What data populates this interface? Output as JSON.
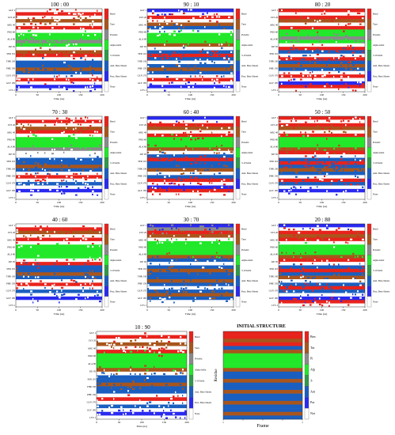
{
  "figure": {
    "background": "#ffffff"
  },
  "legend_colors": {
    "Bend": "#e8231c",
    "Turn": "#a8551c",
    "Pi-helix": "#8a8a8a",
    "Alpha-helix": "#22e82a",
    "3-10 helix": "#2f9a4a",
    "Anti. Beta-Sheets": "#1a5fc0",
    "Para. Beta-Sheets": "#2a2af0",
    "None": "#ffffff"
  },
  "chart_data": [
    {
      "type": "heatmap",
      "title": "100 : 00",
      "xlabel": "Time (ns)",
      "xticks": [
        "0",
        "50",
        "100",
        "150",
        "200"
      ],
      "xlim": [
        0,
        200
      ],
      "yticks": [
        "GLY 1",
        "LYS 20",
        "ARG 40",
        "PRO 60",
        "ALA 80",
        "ILE 95",
        "SER 110",
        "THR 130",
        "PHE 150",
        "GLN 170",
        "GLY 185",
        "LYS 1"
      ],
      "legend": [
        "Bend",
        "Turn",
        "Pi-helix",
        "Alpha-helix",
        "3-10 helix",
        "Anti. Beta-Sheets",
        "Para. Beta-Sheets",
        "None"
      ],
      "bands": [
        "None",
        "Bend",
        "None",
        "Turn",
        "None",
        "Bend",
        "None",
        "Alpha-helix",
        "Alpha-helix",
        "Pi-helix",
        "Alpha-helix",
        "None",
        "Turn",
        "Bend",
        "None",
        "Anti. Beta-Sheets",
        "Anti. Beta-Sheets",
        "Turn",
        "Anti. Beta-Sheets",
        "None",
        "Bend",
        "None",
        "Para. Beta-Sheets",
        "None"
      ]
    },
    {
      "type": "heatmap",
      "title": "90 : 10",
      "xlabel": "Time (ns)",
      "xticks": [
        "0",
        "50",
        "100",
        "150",
        "200"
      ],
      "xlim": [
        0,
        200
      ],
      "yticks": [
        "GLY 1",
        "LYS 20",
        "ARG 40",
        "PRO 60",
        "ALA 80",
        "ILE 95",
        "SER 110",
        "THR 130",
        "PHE 150",
        "GLN 170",
        "GLY 185",
        "LYS 1"
      ],
      "legend": [
        "Bend",
        "Turn",
        "Pi-helix",
        "Alpha-helix",
        "3-10 helix",
        "Anti. Beta-Sheets",
        "Para. Beta-Sheets",
        "None"
      ],
      "bands": [
        "Para. Beta-Sheets",
        "None",
        "Bend",
        "None",
        "Turn",
        "Anti. Beta-Sheets",
        "None",
        "Alpha-helix",
        "Alpha-helix",
        "Alpha-helix",
        "Turn",
        "None",
        "Anti. Beta-Sheets",
        "Bend",
        "Anti. Beta-Sheets",
        "None",
        "Anti. Beta-Sheets",
        "Turn",
        "Anti. Beta-Sheets",
        "None",
        "Bend",
        "None",
        "Para. Beta-Sheets",
        "None"
      ]
    },
    {
      "type": "heatmap",
      "title": "80 : 20",
      "xlabel": "Time (ns)",
      "xticks": [
        "0",
        "50",
        "100",
        "150",
        "200"
      ],
      "xlim": [
        0,
        200
      ],
      "yticks": [
        "GLY 1",
        "LYS 20",
        "ARG 40",
        "PRO 60",
        "ALA 80",
        "ILE 95",
        "SER 110",
        "THR 130",
        "PHE 150",
        "GLN 170",
        "GLY 185",
        "LYS 1"
      ],
      "legend": [
        "Bend",
        "Turn",
        "Pi-helix",
        "Alpha-helix",
        "3-10 helix",
        "Anti. Beta-Sheets",
        "Para. Beta-Sheets",
        "None"
      ],
      "bands": [
        "Bend",
        "None",
        "Bend",
        "Turn",
        "None",
        "Bend",
        "Alpha-helix",
        "Alpha-helix",
        "Pi-helix",
        "Alpha-helix",
        "None",
        "Bend",
        "Anti. Beta-Sheets",
        "None",
        "Bend",
        "Anti. Beta-Sheets",
        "Turn",
        "Anti. Beta-Sheets",
        "None",
        "Bend",
        "None",
        "Para. Beta-Sheets",
        "Bend",
        "None"
      ]
    },
    {
      "type": "heatmap",
      "title": "70 : 30",
      "xlabel": "Time (ns)",
      "xticks": [
        "0",
        "50",
        "100",
        "150",
        "200"
      ],
      "xlim": [
        0,
        200
      ],
      "yticks": [
        "GLY 1",
        "LYS 20",
        "ARG 40",
        "PRO 60",
        "ALA 80",
        "ILE 95",
        "SER 110",
        "THR 130",
        "PHE 150",
        "GLN 170",
        "GLY 185",
        "LYS 1"
      ],
      "legend": [
        "Bend",
        "Turn",
        "Pi-helix",
        "Alpha-helix",
        "3-10 helix",
        "Anti. Beta-Sheets",
        "Para. Beta-Sheets",
        "None"
      ],
      "bands": [
        "None",
        "Bend",
        "None",
        "Turn",
        "Bend",
        "None",
        "Alpha-helix",
        "Alpha-helix",
        "Alpha-helix",
        "Pi-helix",
        "None",
        "None",
        "Anti. Beta-Sheets",
        "Anti. Beta-Sheets",
        "Turn",
        "Anti. Beta-Sheets",
        "None",
        "Bend",
        "None",
        "Anti. Beta-Sheets",
        "None",
        "Para. Beta-Sheets",
        "None",
        "None"
      ]
    },
    {
      "type": "heatmap",
      "title": "60 : 40",
      "xlabel": "Time (ns)",
      "xticks": [
        "0",
        "50",
        "100",
        "150",
        "200"
      ],
      "xlim": [
        0,
        200
      ],
      "yticks": [
        "GLY 1",
        "LYS 20",
        "ARG 40",
        "PRO 60",
        "ALA 80",
        "ILE 95",
        "SER 110",
        "THR 130",
        "PHE 150",
        "GLN 170",
        "GLY 185",
        "LYS 1"
      ],
      "legend": [
        "Bend",
        "Turn",
        "Pi-helix",
        "Alpha-helix",
        "3-10 helix",
        "Anti. Beta-Sheets",
        "Para. Beta-Sheets",
        "None"
      ],
      "bands": [
        "Para. Beta-Sheets",
        "None",
        "Bend",
        "Turn",
        "None",
        "Bend",
        "Alpha-helix",
        "Alpha-helix",
        "Alpha-helix",
        "Turn",
        "None",
        "Anti. Beta-Sheets",
        "Bend",
        "Anti. Beta-Sheets",
        "Anti. Beta-Sheets",
        "Turn",
        "None",
        "Anti. Beta-Sheets",
        "Bend",
        "None",
        "Para. Beta-Sheets",
        "Bend",
        "None",
        "None"
      ]
    },
    {
      "type": "heatmap",
      "title": "50 : 50",
      "xlabel": "Time (ns)",
      "xticks": [
        "0",
        "50",
        "100",
        "150",
        "200"
      ],
      "xlim": [
        0,
        200
      ],
      "yticks": [
        "GLY 1",
        "LYS 20",
        "ARG 40",
        "PRO 60",
        "ALA 80",
        "ILE 95",
        "SER 110",
        "THR 130",
        "PHE 150",
        "GLN 170",
        "GLY 185",
        "LYS 1"
      ],
      "legend": [
        "Bend",
        "Turn",
        "Pi-helix",
        "Alpha-helix",
        "3-10 helix",
        "Anti. Beta-Sheets",
        "Para. Beta-Sheets",
        "None"
      ],
      "bands": [
        "Bend",
        "None",
        "Bend",
        "Turn",
        "None",
        "Bend",
        "Alpha-helix",
        "Alpha-helix",
        "Alpha-helix",
        "Turn",
        "Bend",
        "None",
        "Anti. Beta-Sheets",
        "Bend",
        "Anti. Beta-Sheets",
        "Turn",
        "Anti. Beta-Sheets",
        "None",
        "Bend",
        "Anti. Beta-Sheets",
        "None",
        "Para. Beta-Sheets",
        "None",
        "None"
      ]
    },
    {
      "type": "heatmap",
      "title": "40 : 60",
      "xlabel": "Time (ns)",
      "xticks": [
        "0",
        "50",
        "100",
        "150",
        "200"
      ],
      "xlim": [
        0,
        200
      ],
      "yticks": [
        "GLY 1",
        "LYS 20",
        "ARG 40",
        "PRO 60",
        "ALA 80",
        "ILE 95",
        "SER 110",
        "THR 130",
        "PHE 150",
        "GLN 170",
        "GLY 185",
        "LYS 1"
      ],
      "legend": [
        "Bend",
        "Turn",
        "Pi-helix",
        "Alpha-helix",
        "3-10 helix",
        "Anti. Beta-Sheets",
        "Para. Beta-Sheets",
        "None"
      ],
      "bands": [
        "None",
        "Bend",
        "Turn",
        "None",
        "Bend",
        "None",
        "Alpha-helix",
        "Alpha-helix",
        "Alpha-helix",
        "Alpha-helix",
        "None",
        "Bend",
        "Anti. Beta-Sheets",
        "Anti. Beta-Sheets",
        "Turn",
        "Anti. Beta-Sheets",
        "None",
        "Bend",
        "None",
        "Anti. Beta-Sheets",
        "None",
        "Para. Beta-Sheets",
        "None",
        "None"
      ]
    },
    {
      "type": "heatmap",
      "title": "30 : 70",
      "xlabel": "Time (ns)",
      "xticks": [
        "0",
        "50",
        "100",
        "150",
        "200"
      ],
      "xlim": [
        0,
        200
      ],
      "yticks": [
        "GLY 1",
        "LYS 20",
        "ARG 40",
        "PRO 60",
        "ALA 80",
        "ILE 95",
        "SER 110",
        "THR 130",
        "PHE 150",
        "GLN 170",
        "GLY 185",
        "LYS 1"
      ],
      "legend": [
        "Bend",
        "Turn",
        "Pi-helix",
        "Alpha-helix",
        "3-10 helix",
        "Anti. Beta-Sheets",
        "Para. Beta-Sheets",
        "None"
      ],
      "bands": [
        "Para. Beta-Sheets",
        "Pi-helix",
        "Bend",
        "Turn",
        "None",
        "Alpha-helix",
        "Alpha-helix",
        "Alpha-helix",
        "Alpha-helix",
        "Turn",
        "Anti. Beta-Sheets",
        "None",
        "Anti. Beta-Sheets",
        "Turn",
        "Anti. Beta-Sheets",
        "Anti. Beta-Sheets",
        "Turn",
        "Anti. Beta-Sheets",
        "None",
        "Anti. Beta-Sheets",
        "Turn",
        "Anti. Beta-Sheets",
        "None",
        "None"
      ]
    },
    {
      "type": "heatmap",
      "title": "20 : 80",
      "xlabel": "Time (ns)",
      "xticks": [
        "0",
        "50",
        "100",
        "150",
        "200"
      ],
      "xlim": [
        0,
        200
      ],
      "yticks": [
        "GLY 1",
        "LYS 20",
        "ARG 40",
        "PRO 60",
        "ALA 80",
        "ILE 95",
        "SER 110",
        "THR 130",
        "PHE 150",
        "GLN 170",
        "GLY 185",
        "LYS 1"
      ],
      "legend": [
        "Bend",
        "Turn",
        "Pi-helix",
        "Alpha-helix",
        "3-10 helix",
        "Anti. Beta-Sheets",
        "Para. Beta-Sheets",
        "None"
      ],
      "bands": [
        "Para. Beta-Sheets",
        "None",
        "Bend",
        "Turn",
        "Bend",
        "None",
        "Alpha-helix",
        "Alpha-helix",
        "Alpha-helix",
        "Turn",
        "Bend",
        "None",
        "Anti. Beta-Sheets",
        "Bend",
        "Anti. Beta-Sheets",
        "Turn",
        "None",
        "Anti. Beta-Sheets",
        "Bend",
        "Anti. Beta-Sheets",
        "None",
        "Para. Beta-Sheets",
        "Bend",
        "None"
      ]
    },
    {
      "type": "heatmap",
      "title": "10 : 90",
      "xlabel": "Time (ns)",
      "xticks": [
        "0",
        "50",
        "100",
        "150",
        "200"
      ],
      "xlim": [
        0,
        200
      ],
      "yticks": [
        "GLY 1",
        "LYS 20",
        "ARG 40",
        "PRO 60",
        "ALA 80",
        "ILE 95",
        "SER 110",
        "THR 130",
        "PHE 150",
        "GLN 170",
        "GLY 185",
        "LYS 1"
      ],
      "legend": [
        "Bend",
        "Turn",
        "Pi-helix",
        "Alpha-helix",
        "3-10 helix",
        "Anti. Beta-Sheets",
        "Para. Beta-Sheets",
        "None"
      ],
      "bands": [
        "None",
        "Bend",
        "None",
        "Turn",
        "None",
        "Bend",
        "Alpha-helix",
        "Alpha-helix",
        "Alpha-helix",
        "Alpha-helix",
        "Turn",
        "None",
        "Anti. Beta-Sheets",
        "Anti. Beta-Sheets",
        "Turn",
        "Anti. Beta-Sheets",
        "Anti. Beta-Sheets",
        "None",
        "Bend",
        "None",
        "Anti. Beta-Sheets",
        "None",
        "Para. Beta-Sheets",
        "None"
      ]
    },
    {
      "type": "heatmap",
      "title": "INITIAL STRUCTURE",
      "xlabel": "Frame",
      "ylabel": "Residue",
      "xticks": [
        "1",
        "",
        "",
        "",
        "1"
      ],
      "xlim": [
        0,
        1
      ],
      "yticks": [],
      "legend": [
        "Ben",
        "Tur",
        "Pi",
        "Alp",
        "3-",
        "Ant",
        "Par",
        "Not"
      ],
      "bands": [
        "Bend",
        "Bend",
        "Turn",
        "Bend",
        "Anti. Beta-Sheets",
        "Turn",
        "Alpha-helix",
        "Alpha-helix",
        "Alpha-helix",
        "Alpha-helix",
        "Turn",
        "Anti. Beta-Sheets",
        "Anti. Beta-Sheets",
        "Turn",
        "Anti. Beta-Sheets",
        "Anti. Beta-Sheets",
        "Turn",
        "Anti. Beta-Sheets",
        "Anti. Beta-Sheets",
        "Turn",
        "Anti. Beta-Sheets",
        "Anti. Beta-Sheets",
        "Turn",
        "Anti. Beta-Sheets"
      ]
    }
  ]
}
